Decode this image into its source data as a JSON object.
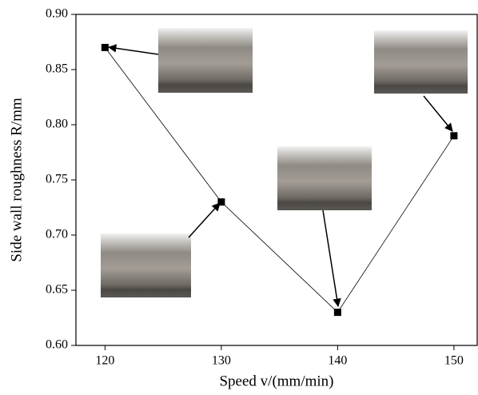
{
  "chart_data": {
    "type": "line",
    "xlabel": "Speed v/(mm/min)",
    "ylabel": "Side wall roughness R/mm",
    "x": [
      120,
      130,
      140,
      150
    ],
    "series": [
      {
        "color": "#000000",
        "values": [
          0.87,
          0.73,
          0.63,
          0.79
        ]
      }
    ],
    "xlim": [
      117.5,
      152
    ],
    "ylim": [
      0.6,
      0.9
    ],
    "xticks": [
      120,
      130,
      140,
      150
    ],
    "yticks": [
      {
        "value": 0.6,
        "label": "0.60"
      },
      {
        "value": 0.65,
        "label": "0.65"
      },
      {
        "value": 0.7,
        "label": "0.70"
      },
      {
        "value": 0.75,
        "label": "0.75"
      },
      {
        "value": 0.8,
        "label": "0.80"
      },
      {
        "value": 0.85,
        "label": "0.85"
      },
      {
        "value": 0.9,
        "label": "0.90"
      }
    ],
    "grid": false
  }
}
